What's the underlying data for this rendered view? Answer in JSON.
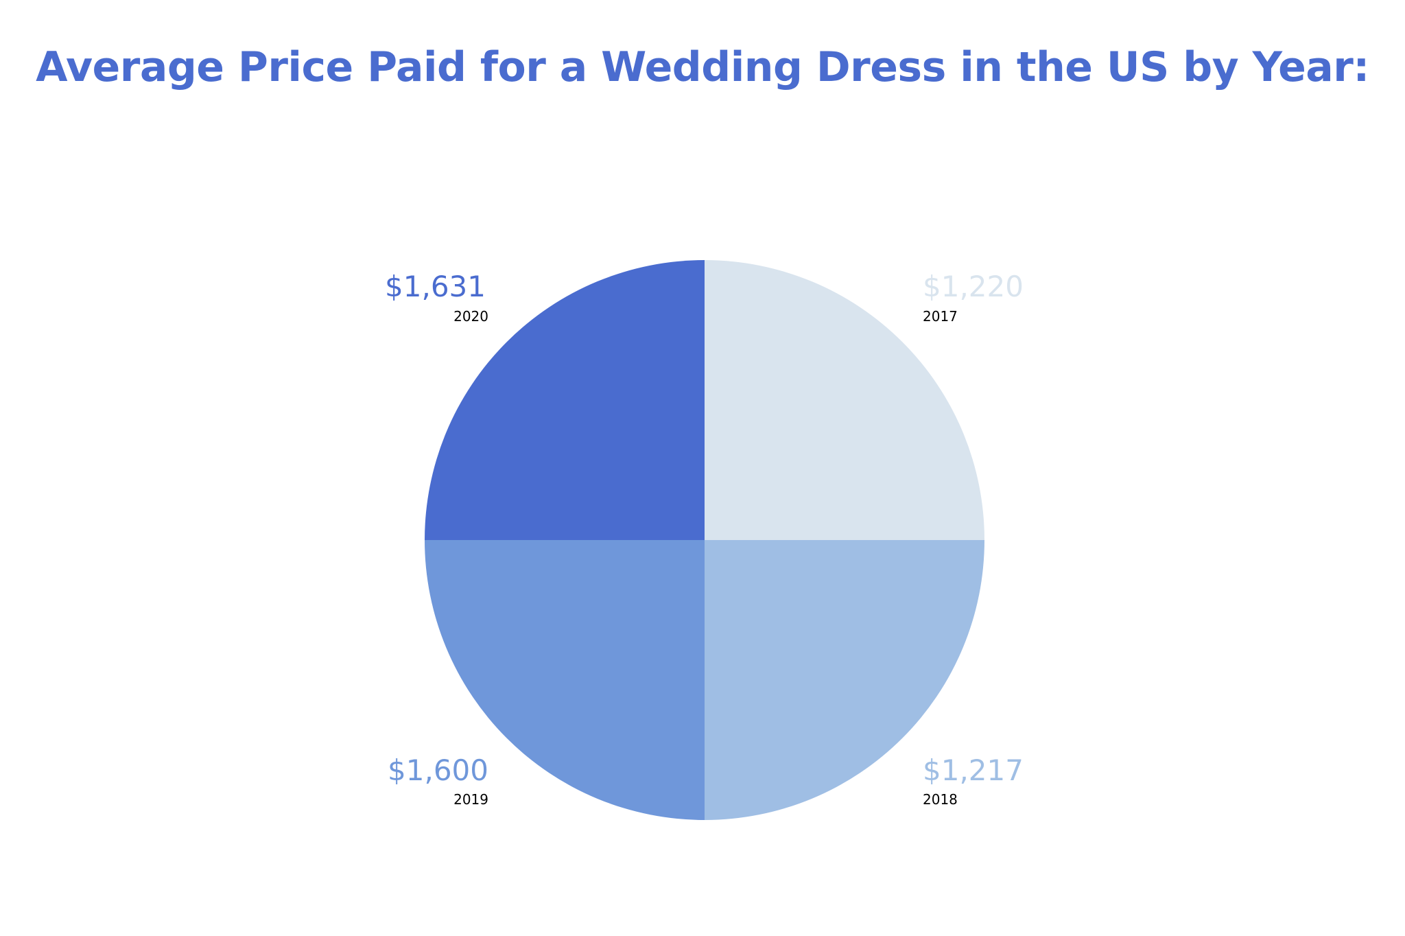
{
  "chart_data": {
    "type": "pie",
    "title": "Average Price Paid for a Wedding Dress in the US by Year:",
    "title_color": "#4a6ccf",
    "slices": [
      {
        "year": "2017",
        "value": 1220,
        "value_label": "$1,220",
        "color": "#d9e4ee"
      },
      {
        "year": "2018",
        "value": 1217,
        "value_label": "$1,217",
        "color": "#9fbee4"
      },
      {
        "year": "2019",
        "value": 1600,
        "value_label": "$1,600",
        "color": "#6f97da"
      },
      {
        "year": "2020",
        "value": 1631,
        "value_label": "$1,631",
        "color": "#4a6ccf"
      }
    ],
    "label_placement": "outside-corners",
    "legend": false,
    "grid": false
  }
}
